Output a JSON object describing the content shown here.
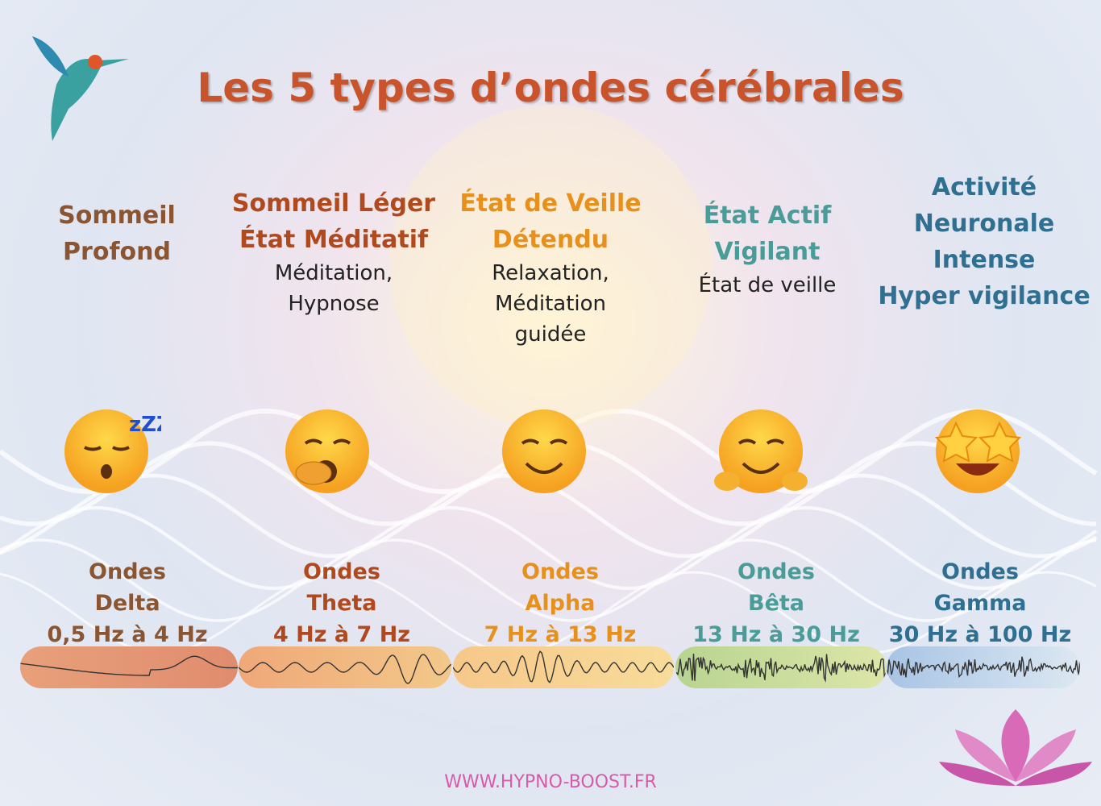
{
  "title": "Les 5 types d’ondes cérébrales",
  "website": "WWW.HYPNO-BOOST.FR",
  "waves": [
    {
      "state": [
        "Sommeil",
        "Profond"
      ],
      "desc": [],
      "wave": "Ondes",
      "name": "Delta",
      "range": "0,5 Hz à 4 Hz",
      "color": "#8a5530",
      "band": [
        "#e8a07a",
        "#e08c6e"
      ],
      "emoji": "sleeping-face-icon"
    },
    {
      "state": [
        "Sommeil Léger",
        "État Méditatif"
      ],
      "desc": [
        "Méditation,",
        "Hypnose"
      ],
      "wave": "Ondes",
      "name": "Theta",
      "range": "4 Hz à 7 Hz",
      "color": "#b04a1e",
      "band": [
        "#f0a878",
        "#f2c88a"
      ],
      "emoji": "yawning-face-icon"
    },
    {
      "state": [
        "État de Veille",
        "Détendu"
      ],
      "desc": [
        "Relaxation,",
        "Méditation",
        "guidée"
      ],
      "wave": "Ondes",
      "name": "Alpha",
      "range": "7 Hz à 13 Hz",
      "color": "#e8901c",
      "band": [
        "#f6c88a",
        "#f8dc9a"
      ],
      "emoji": "smiling-face-icon"
    },
    {
      "state": [
        "État Actif",
        "Vigilant"
      ],
      "desc": [
        "État de veille"
      ],
      "wave": "Ondes",
      "name": "Bêta",
      "range": "13 Hz à 30 Hz",
      "color": "#4a9c98",
      "band": [
        "#b8d490",
        "#dce6a8"
      ],
      "emoji": "hugging-face-icon"
    },
    {
      "state": [
        "Activité",
        "Neuronale",
        "Intense",
        "Hyper vigilance"
      ],
      "desc": [],
      "wave": "Ondes",
      "name": "Gamma",
      "range": "30 Hz à 100 Hz",
      "color": "#2f7092",
      "band": [
        "#a8c4e4",
        "#dce8f2"
      ],
      "emoji": "star-struck-face-icon"
    }
  ]
}
